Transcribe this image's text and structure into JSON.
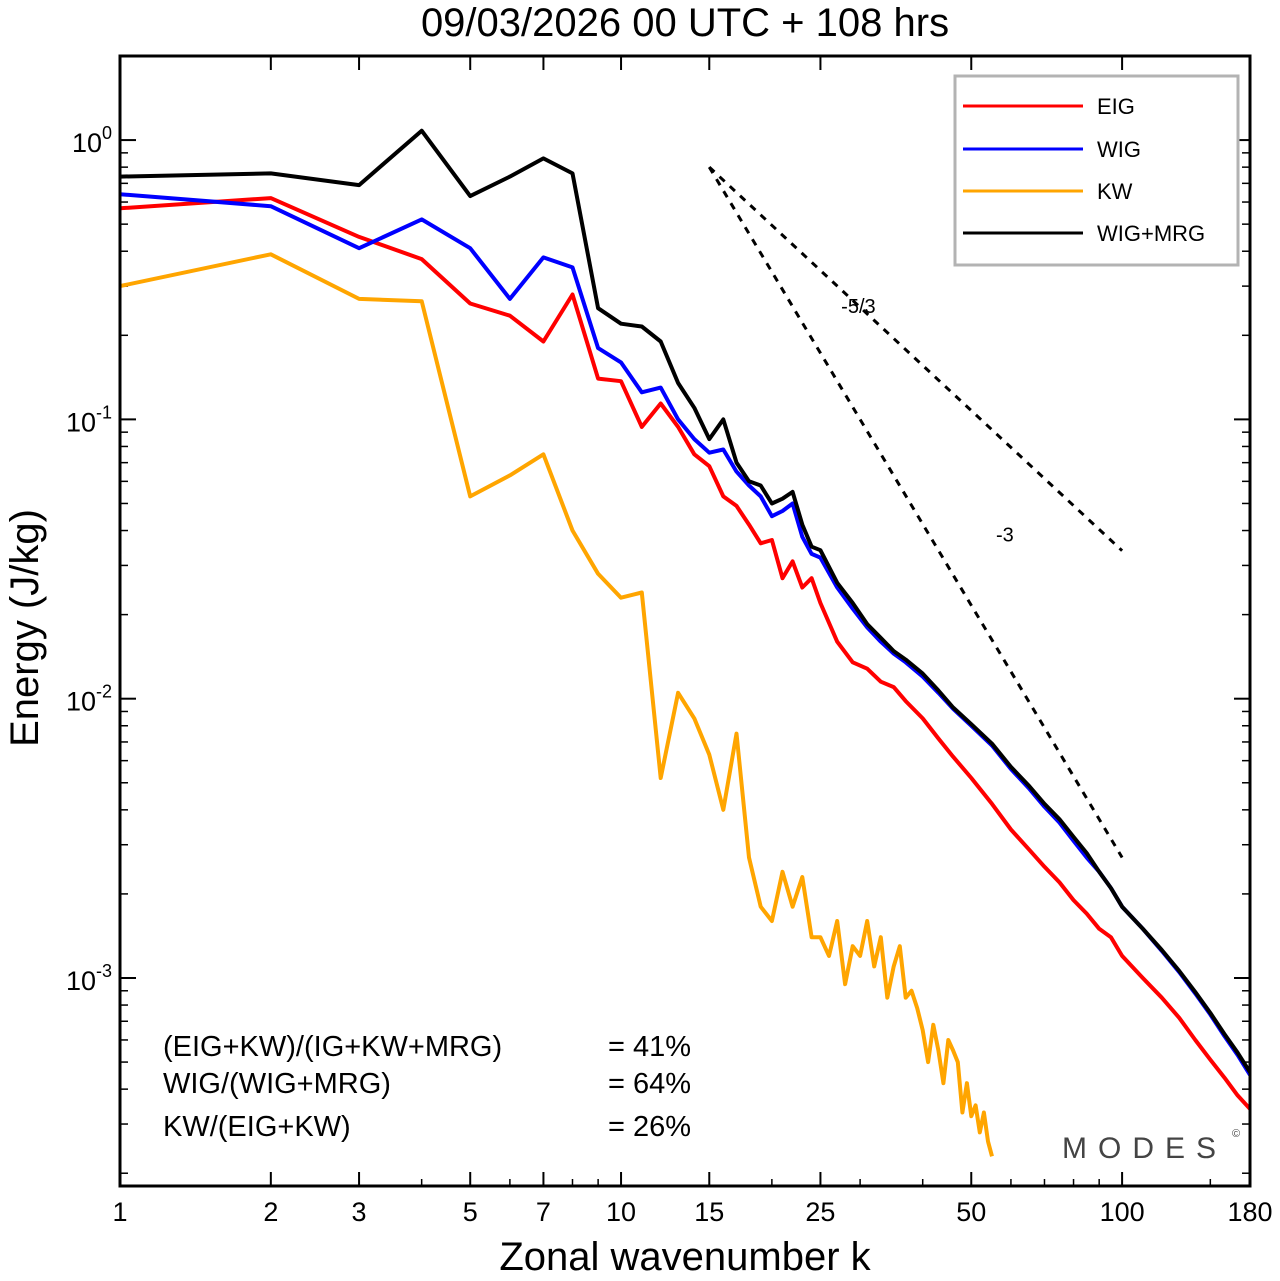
{
  "chart_data": {
    "type": "line",
    "title": "09/03/2026  00 UTC  + 108 hrs",
    "xlabel": "Zonal wavenumber k",
    "ylabel": "Energy (J/kg)",
    "xscale": "log",
    "yscale": "log",
    "xlim": [
      1,
      180
    ],
    "ylim": [
      0.00018,
      2.0
    ],
    "x_ticks": [
      1,
      2,
      3,
      5,
      7,
      10,
      15,
      25,
      50,
      100,
      180
    ],
    "x_tick_labels": [
      "1",
      "2",
      "3",
      "5",
      "7",
      "10",
      "15",
      "25",
      "50",
      "100",
      "180"
    ],
    "y_ticks": [
      {
        "base": "10",
        "exp": "0",
        "value": 1
      },
      {
        "base": "10",
        "exp": "-1",
        "value": 0.1
      },
      {
        "base": "10",
        "exp": "-2",
        "value": 0.01
      },
      {
        "base": "10",
        "exp": "-3",
        "value": 0.001
      }
    ],
    "legend_position": "top-right",
    "series": [
      {
        "name": "EIG",
        "color": "#ff0000",
        "points": [
          [
            1,
            0.57
          ],
          [
            2,
            0.62
          ],
          [
            3,
            0.45
          ],
          [
            4,
            0.375
          ],
          [
            5,
            0.26
          ],
          [
            6,
            0.235
          ],
          [
            7,
            0.19
          ],
          [
            8,
            0.28
          ],
          [
            9,
            0.14
          ],
          [
            10,
            0.137
          ],
          [
            11,
            0.094
          ],
          [
            12,
            0.114
          ],
          [
            13,
            0.094
          ],
          [
            14,
            0.075
          ],
          [
            15,
            0.068
          ],
          [
            16,
            0.053
          ],
          [
            17,
            0.049
          ],
          [
            18,
            0.042
          ],
          [
            19,
            0.036
          ],
          [
            20,
            0.037
          ],
          [
            21,
            0.027
          ],
          [
            22,
            0.031
          ],
          [
            23,
            0.025
          ],
          [
            24,
            0.027
          ],
          [
            25,
            0.022
          ],
          [
            27,
            0.016
          ],
          [
            29,
            0.0135
          ],
          [
            31,
            0.0128
          ],
          [
            33,
            0.0115
          ],
          [
            35,
            0.011
          ],
          [
            37,
            0.0098
          ],
          [
            40,
            0.0085
          ],
          [
            43,
            0.0072
          ],
          [
            46,
            0.0062
          ],
          [
            50,
            0.0052
          ],
          [
            55,
            0.0042
          ],
          [
            60,
            0.0034
          ],
          [
            65,
            0.0029
          ],
          [
            70,
            0.0025
          ],
          [
            75,
            0.0022
          ],
          [
            80,
            0.0019
          ],
          [
            85,
            0.0017
          ],
          [
            90,
            0.0015
          ],
          [
            95,
            0.0014
          ],
          [
            100,
            0.0012
          ],
          [
            110,
            0.001
          ],
          [
            120,
            0.00085
          ],
          [
            130,
            0.00072
          ],
          [
            140,
            0.0006
          ],
          [
            150,
            0.00051
          ],
          [
            160,
            0.00044
          ],
          [
            170,
            0.00038
          ],
          [
            180,
            0.00034
          ]
        ]
      },
      {
        "name": "WIG",
        "color": "#0000ff",
        "points": [
          [
            1,
            0.64
          ],
          [
            2,
            0.58
          ],
          [
            3,
            0.41
          ],
          [
            4,
            0.52
          ],
          [
            5,
            0.41
          ],
          [
            6,
            0.27
          ],
          [
            7,
            0.38
          ],
          [
            8,
            0.35
          ],
          [
            9,
            0.18
          ],
          [
            10,
            0.16
          ],
          [
            11,
            0.125
          ],
          [
            12,
            0.13
          ],
          [
            13,
            0.1
          ],
          [
            14,
            0.085
          ],
          [
            15,
            0.076
          ],
          [
            16,
            0.078
          ],
          [
            17,
            0.065
          ],
          [
            18,
            0.058
          ],
          [
            19,
            0.053
          ],
          [
            20,
            0.045
          ],
          [
            21,
            0.047
          ],
          [
            22,
            0.05
          ],
          [
            23,
            0.038
          ],
          [
            24,
            0.033
          ],
          [
            25,
            0.032
          ],
          [
            27,
            0.025
          ],
          [
            29,
            0.021
          ],
          [
            31,
            0.018
          ],
          [
            33,
            0.016
          ],
          [
            35,
            0.0145
          ],
          [
            37,
            0.0135
          ],
          [
            40,
            0.012
          ],
          [
            43,
            0.0105
          ],
          [
            46,
            0.0092
          ],
          [
            50,
            0.008
          ],
          [
            55,
            0.0068
          ],
          [
            60,
            0.0056
          ],
          [
            65,
            0.0048
          ],
          [
            70,
            0.0041
          ],
          [
            75,
            0.0036
          ],
          [
            80,
            0.0031
          ],
          [
            85,
            0.0027
          ],
          [
            90,
            0.0024
          ],
          [
            95,
            0.0021
          ],
          [
            100,
            0.0018
          ],
          [
            110,
            0.0015
          ],
          [
            120,
            0.00125
          ],
          [
            130,
            0.00105
          ],
          [
            140,
            0.00088
          ],
          [
            150,
            0.00074
          ],
          [
            160,
            0.00062
          ],
          [
            170,
            0.00053
          ],
          [
            180,
            0.00045
          ]
        ]
      },
      {
        "name": "KW",
        "color": "#ffa500",
        "points": [
          [
            1,
            0.3
          ],
          [
            2,
            0.39
          ],
          [
            3,
            0.27
          ],
          [
            4,
            0.265
          ],
          [
            5,
            0.053
          ],
          [
            6,
            0.063
          ],
          [
            7,
            0.075
          ],
          [
            8,
            0.04
          ],
          [
            9,
            0.028
          ],
          [
            10,
            0.023
          ],
          [
            11,
            0.024
          ],
          [
            12,
            0.0052
          ],
          [
            13,
            0.0105
          ],
          [
            14,
            0.0085
          ],
          [
            15,
            0.0063
          ],
          [
            16,
            0.004
          ],
          [
            17,
            0.0075
          ],
          [
            18,
            0.0027
          ],
          [
            19,
            0.0018
          ],
          [
            20,
            0.0016
          ],
          [
            21,
            0.0024
          ],
          [
            22,
            0.0018
          ],
          [
            23,
            0.0023
          ],
          [
            24,
            0.0014
          ],
          [
            25,
            0.0014
          ],
          [
            26,
            0.0012
          ],
          [
            27,
            0.0016
          ],
          [
            28,
            0.00095
          ],
          [
            29,
            0.0013
          ],
          [
            30,
            0.0012
          ],
          [
            31,
            0.0016
          ],
          [
            32,
            0.0011
          ],
          [
            33,
            0.0014
          ],
          [
            34,
            0.00085
          ],
          [
            35,
            0.0011
          ],
          [
            36,
            0.0013
          ],
          [
            37,
            0.00085
          ],
          [
            38,
            0.0009
          ],
          [
            39,
            0.00078
          ],
          [
            40,
            0.00065
          ],
          [
            41,
            0.0005
          ],
          [
            42,
            0.00068
          ],
          [
            43,
            0.00055
          ],
          [
            44,
            0.00042
          ],
          [
            45,
            0.0006
          ],
          [
            46,
            0.00055
          ],
          [
            47,
            0.0005
          ],
          [
            48,
            0.00033
          ],
          [
            49,
            0.00042
          ],
          [
            50,
            0.00032
          ],
          [
            51,
            0.00035
          ],
          [
            52,
            0.00028
          ],
          [
            53,
            0.00033
          ],
          [
            54,
            0.00026
          ],
          [
            55,
            0.00023
          ]
        ]
      },
      {
        "name": "WIG+MRG",
        "color": "#000000",
        "points": [
          [
            1,
            0.74
          ],
          [
            2,
            0.76
          ],
          [
            3,
            0.69
          ],
          [
            4,
            1.08
          ],
          [
            5,
            0.63
          ],
          [
            6,
            0.74
          ],
          [
            7,
            0.86
          ],
          [
            8,
            0.76
          ],
          [
            9,
            0.25
          ],
          [
            10,
            0.22
          ],
          [
            11,
            0.215
          ],
          [
            12,
            0.19
          ],
          [
            13,
            0.135
          ],
          [
            14,
            0.11
          ],
          [
            15,
            0.085
          ],
          [
            16,
            0.1
          ],
          [
            17,
            0.07
          ],
          [
            18,
            0.06
          ],
          [
            19,
            0.058
          ],
          [
            20,
            0.05
          ],
          [
            21,
            0.052
          ],
          [
            22,
            0.055
          ],
          [
            23,
            0.042
          ],
          [
            24,
            0.035
          ],
          [
            25,
            0.034
          ],
          [
            27,
            0.026
          ],
          [
            29,
            0.022
          ],
          [
            31,
            0.0185
          ],
          [
            33,
            0.0165
          ],
          [
            35,
            0.0148
          ],
          [
            37,
            0.0138
          ],
          [
            40,
            0.0123
          ],
          [
            43,
            0.0107
          ],
          [
            46,
            0.0093
          ],
          [
            50,
            0.0081
          ],
          [
            55,
            0.0069
          ],
          [
            60,
            0.0057
          ],
          [
            65,
            0.0049
          ],
          [
            70,
            0.0042
          ],
          [
            75,
            0.0037
          ],
          [
            80,
            0.0032
          ],
          [
            85,
            0.0028
          ],
          [
            90,
            0.0024
          ],
          [
            95,
            0.0021
          ],
          [
            100,
            0.0018
          ],
          [
            110,
            0.0015
          ],
          [
            120,
            0.00126
          ],
          [
            130,
            0.00106
          ],
          [
            140,
            0.00089
          ],
          [
            150,
            0.00075
          ],
          [
            160,
            0.00063
          ],
          [
            170,
            0.00054
          ],
          [
            180,
            0.00046
          ]
        ]
      }
    ],
    "reference_lines": [
      {
        "label": "-5/3",
        "slope": -1.6667,
        "x_start": 15,
        "x_end": 100,
        "y_start": 0.8,
        "label_at": [
          27,
          0.24
        ]
      },
      {
        "label": "-3",
        "slope": -3,
        "x_start": 15,
        "x_end": 100,
        "y_start": 0.8,
        "label_at": [
          55,
          0.0365
        ]
      }
    ]
  },
  "stats": [
    {
      "label": "(EIG+KW)/(IG+KW+MRG)",
      "value": "= 41%"
    },
    {
      "label": "WIG/(WIG+MRG)",
      "value": "= 64%"
    },
    {
      "label": "KW/(EIG+KW)",
      "value": "= 26%"
    }
  ],
  "brand": {
    "name": "MODES",
    "mark": "©"
  }
}
